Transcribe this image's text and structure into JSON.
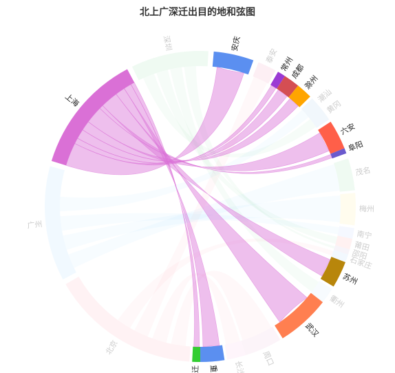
{
  "title": "北上广深迁出目的地和弦图",
  "chart_data": {
    "type": "chord",
    "title": "北上广深迁出目的地和弦图",
    "highlighted_node": "上海",
    "nodes": [
      {
        "name": "安庆",
        "color": "#5b8ff0",
        "start": 5,
        "end": 20,
        "active": true
      },
      {
        "name": "泰安",
        "color": "#f3a8c0",
        "start": 22,
        "end": 29,
        "active": false
      },
      {
        "name": "常州",
        "color": "#9b39d3",
        "start": 30,
        "end": 33,
        "active": true
      },
      {
        "name": "成都",
        "color": "#d44e53",
        "start": 33,
        "end": 39,
        "active": true
      },
      {
        "name": "滁州",
        "color": "#ffa500",
        "start": 39,
        "end": 45,
        "active": true
      },
      {
        "name": "潮汕",
        "color": "#b0d0f0",
        "start": 46,
        "end": 51,
        "active": false
      },
      {
        "name": "黄冈",
        "color": "#b0d0f0",
        "start": 51,
        "end": 56,
        "active": false
      },
      {
        "name": "六安",
        "color": "#ff5f49",
        "start": 57,
        "end": 68,
        "active": true
      },
      {
        "name": "阜阳",
        "color": "#6a5acd",
        "start": 68,
        "end": 70,
        "active": true
      },
      {
        "name": "茂名",
        "color": "#a8e6b8",
        "start": 72,
        "end": 84,
        "active": false
      },
      {
        "name": "梅州",
        "color": "#fff0a0",
        "start": 85,
        "end": 97,
        "active": false
      },
      {
        "name": "南宁",
        "color": "#c8d8ff",
        "start": 98,
        "end": 102,
        "active": false
      },
      {
        "name": "莆田",
        "color": "#ffb0b0",
        "start": 102,
        "end": 106,
        "active": false
      },
      {
        "name": "邵阳",
        "color": "#d0c0e0",
        "start": 106,
        "end": 108,
        "active": false
      },
      {
        "name": "石家庄",
        "color": "#b8d8f8",
        "start": 108,
        "end": 111,
        "active": false
      },
      {
        "name": "苏州",
        "color": "#b8860b",
        "start": 111,
        "end": 121,
        "active": true
      },
      {
        "name": "衢州",
        "color": "#d0e8f8",
        "start": 122,
        "end": 128,
        "active": false
      },
      {
        "name": "武汉",
        "color": "#ff7f50",
        "start": 128,
        "end": 148,
        "active": true
      },
      {
        "name": "周口",
        "color": "#f0c0e0",
        "start": 149,
        "end": 163,
        "active": false
      },
      {
        "name": "长沙",
        "color": "#f8c8e8",
        "start": 163,
        "end": 170,
        "active": false
      },
      {
        "name": "重庆",
        "color": "#5b8ff0",
        "start": 171,
        "end": 180,
        "active": true
      },
      {
        "name": "宿迁",
        "color": "#32cd32",
        "start": 180,
        "end": 183,
        "active": true
      },
      {
        "name": "北京",
        "color": "#ffb6c1",
        "start": 184,
        "end": 240,
        "active": false
      },
      {
        "name": "广州",
        "color": "#b0e0ff",
        "start": 242,
        "end": 285,
        "active": false
      },
      {
        "name": "上海",
        "color": "#da70d6",
        "start": 287,
        "end": 332,
        "active": true
      },
      {
        "name": "深圳",
        "color": "#a8e6b8",
        "start": 334,
        "end": 363,
        "active": false
      }
    ],
    "links": [
      {
        "source": "上海",
        "target": "安庆",
        "value": 12
      },
      {
        "source": "上海",
        "target": "常州",
        "value": 3
      },
      {
        "source": "上海",
        "target": "成都",
        "value": 5
      },
      {
        "source": "上海",
        "target": "滁州",
        "value": 5
      },
      {
        "source": "上海",
        "target": "六安",
        "value": 9
      },
      {
        "source": "上海",
        "target": "阜阳",
        "value": 2
      },
      {
        "source": "上海",
        "target": "苏州",
        "value": 9
      },
      {
        "source": "上海",
        "target": "武汉",
        "value": 5
      },
      {
        "source": "上海",
        "target": "重庆",
        "value": 4
      },
      {
        "source": "上海",
        "target": "宿迁",
        "value": 2
      }
    ],
    "background_links": [
      {
        "source": "北京",
        "target": "周口"
      },
      {
        "source": "北京",
        "target": "长沙"
      },
      {
        "source": "北京",
        "target": "泰安"
      },
      {
        "source": "北京",
        "target": "石家庄"
      },
      {
        "source": "广州",
        "target": "茂名"
      },
      {
        "source": "广州",
        "target": "梅州"
      },
      {
        "source": "广州",
        "target": "南宁"
      },
      {
        "source": "广州",
        "target": "潮汕"
      },
      {
        "source": "深圳",
        "target": "黄冈"
      },
      {
        "source": "深圳",
        "target": "莆田"
      },
      {
        "source": "深圳",
        "target": "衢州"
      },
      {
        "source": "深圳",
        "target": "邵阳"
      }
    ],
    "highlight_color": "#da70d6"
  }
}
